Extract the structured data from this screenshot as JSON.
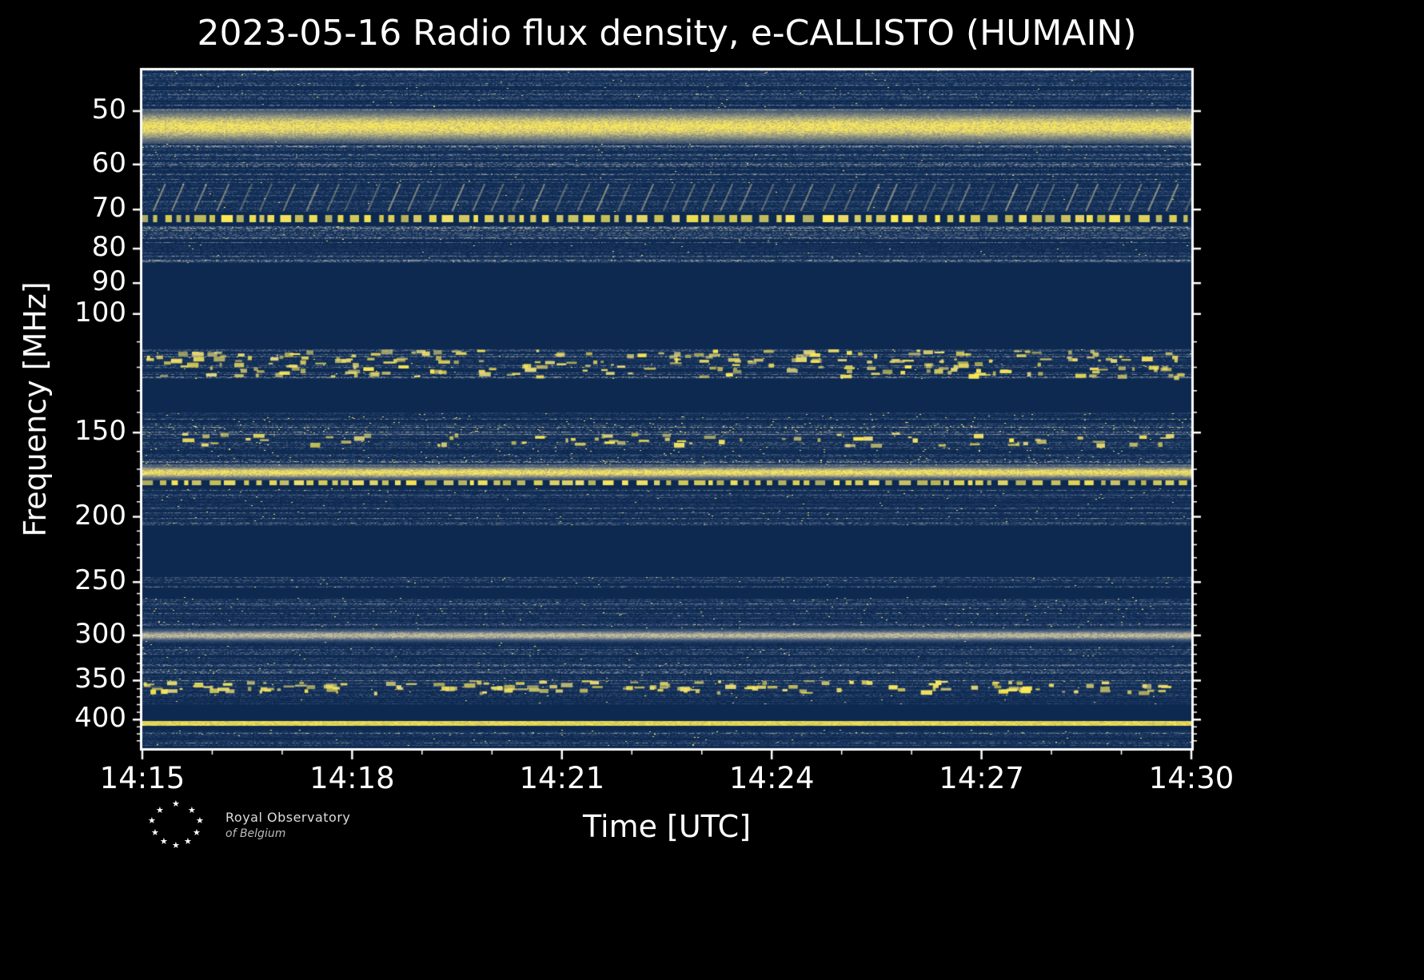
{
  "page": {
    "background": "#000000"
  },
  "header": {
    "title": "2023-05-16 Radio flux density, e-CALLISTO (HUMAIN)"
  },
  "axes": {
    "xlabel": "Time [UTC]",
    "ylabel": "Frequency [MHz]",
    "x_tick_labels": [
      "14:15",
      "14:18",
      "14:21",
      "14:24",
      "14:27",
      "14:30"
    ],
    "y_tick_labels": [
      "50",
      "60",
      "70",
      "80",
      "90",
      "100",
      "150",
      "200",
      "250",
      "300",
      "350",
      "400"
    ]
  },
  "footer": {
    "credit_line1": "Royal Observatory",
    "credit_line2": "of Belgium"
  },
  "chart_data": {
    "type": "heatmap",
    "subtype": "radio-spectrogram",
    "title": "2023-05-16 Radio flux density, e-CALLISTO (HUMAIN)",
    "xlabel": "Time [UTC]",
    "ylabel": "Frequency [MHz]",
    "x_ticks": [
      "14:15",
      "14:18",
      "14:21",
      "14:24",
      "14:27",
      "14:30"
    ],
    "x_minor_interval_minutes": 1,
    "y_ticks": [
      50,
      60,
      70,
      80,
      90,
      100,
      150,
      200,
      250,
      300,
      350,
      400
    ],
    "y_minor_ticks": [
      110,
      120,
      130,
      140,
      160,
      170,
      180,
      190,
      210,
      220,
      230,
      240,
      260,
      270,
      280,
      290,
      310,
      320,
      330,
      340,
      360,
      370,
      380,
      390,
      410,
      420,
      430
    ],
    "y_scale": "log",
    "freq_range_mhz": [
      43.5,
      441
    ],
    "time_range_utc": [
      "14:15",
      "14:30"
    ],
    "grid": false,
    "legend": "none",
    "colors": {
      "plot_background": "#0d2950",
      "noise_blue": "#3a557f",
      "gray": "#8e97a4",
      "tan": "#d6cc96",
      "yellow": "#ffec4f",
      "frame": "#ffffff",
      "text": "#ffffff"
    },
    "bands": [
      {
        "f": [
          43.5,
          50.0
        ],
        "style": "noise",
        "row": 0.5,
        "speck": 0.003,
        "label": "blue-gray background noise 44-50 MHz"
      },
      {
        "f": [
          50.0,
          55.5
        ],
        "style": "bright",
        "label": "bright continuous yellow emission band ~50-55 MHz"
      },
      {
        "f": [
          55.5,
          64.0
        ],
        "style": "noise",
        "row": 0.55,
        "speck": 0.002,
        "label": "streaky gray-blue noise 56-64 MHz"
      },
      {
        "f": [
          64.0,
          70.5
        ],
        "style": "diagonal",
        "row": 0.35,
        "label": "repeating slanted striations 64-70 MHz"
      },
      {
        "f": [
          71.3,
          73.0
        ],
        "style": "dashed",
        "label": "bright yellow dashed line ~72 MHz"
      },
      {
        "f": [
          74.0,
          84.0
        ],
        "style": "noise",
        "row": 0.55,
        "speck": 0.002,
        "label": "gray-blue noise 74-84 MHz"
      },
      {
        "f": [
          113,
          125
        ],
        "style": "blotch",
        "row": 0.5,
        "blotches": 240,
        "label": "noisy band with yellow bursts 113-125 MHz"
      },
      {
        "f": [
          140,
          147
        ],
        "style": "noise",
        "row": 0.5,
        "speck": 0.008,
        "label": "noise band 140-147 MHz"
      },
      {
        "f": [
          147,
          152
        ],
        "style": "noise",
        "row": 0.6,
        "speck": 0.015,
        "label": "brighter noise band 147-152 MHz"
      },
      {
        "f": [
          150,
          158
        ],
        "style": "blotch",
        "row": 0.45,
        "blotches": 70,
        "label": "scattered yellow blobs 150-158 MHz"
      },
      {
        "f": [
          158,
          168
        ],
        "style": "noise",
        "row": 0.55,
        "speck": 0.008,
        "label": "gray streaky noise 158-168 MHz"
      },
      {
        "f": [
          168,
          175
        ],
        "style": "bright",
        "label": "bright continuous yellow band ~170-175 MHz"
      },
      {
        "f": [
          176.5,
          179.5
        ],
        "style": "dashed",
        "label": "broken yellow line ~178 MHz"
      },
      {
        "f": [
          181,
          206
        ],
        "style": "noise",
        "row": 0.5,
        "speck": 0.003,
        "label": "blue noise 181-206 MHz"
      },
      {
        "f": [
          246,
          255
        ],
        "style": "noise",
        "row": 0.5,
        "speck": 0.005,
        "label": "thin noise band ~250 MHz"
      },
      {
        "f": [
          263,
          294
        ],
        "style": "noise",
        "row": 0.45,
        "speck": 0.005,
        "label": "blue noise 263-294 MHz"
      },
      {
        "f": [
          294,
          305
        ],
        "style": "tan",
        "label": "tan-yellow emission band ~300 MHz"
      },
      {
        "f": [
          305,
          344
        ],
        "style": "noise",
        "row": 0.45,
        "speck": 0.003,
        "label": "blue noise 305-344 MHz"
      },
      {
        "f": [
          344,
          352
        ],
        "style": "noise",
        "row": 0.6,
        "speck": 0.002,
        "label": "gray band ~348 MHz"
      },
      {
        "f": [
          350,
          368
        ],
        "style": "blotch",
        "row": 0.4,
        "blotches": 150,
        "label": "intermittent yellow bursts 350-368 MHz"
      },
      {
        "f": [
          368,
          380
        ],
        "style": "noise",
        "row": 0.35,
        "speck": 0.002,
        "label": "faint noise 368-380 MHz"
      },
      {
        "f": [
          402,
          408
        ],
        "style": "line",
        "label": "bright continuous yellow line ~405 MHz"
      },
      {
        "f": [
          414,
          437
        ],
        "style": "noise",
        "row": 0.5,
        "speck": 0.004,
        "label": "blue noise 414-437 MHz"
      }
    ]
  }
}
